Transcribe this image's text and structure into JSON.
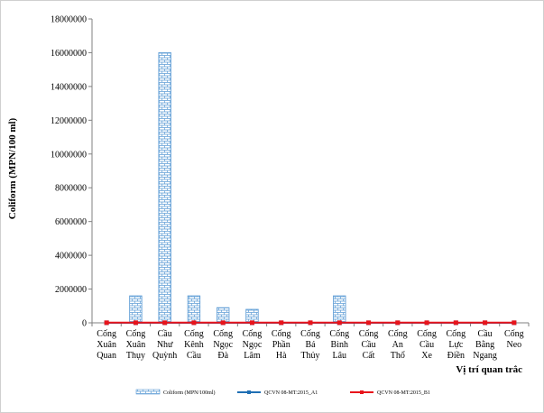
{
  "chart_data": {
    "type": "bar",
    "xlabel": "Vị trí quan trắc",
    "ylabel": "Coliform (MPN/100 ml)",
    "ylim": [
      0,
      18000000
    ],
    "yticks": [
      "0",
      "2000000",
      "4000000",
      "6000000",
      "8000000",
      "10000000",
      "12000000",
      "14000000",
      "16000000",
      "18000000"
    ],
    "categories": [
      [
        "Cống",
        "Xuân",
        "Quan"
      ],
      [
        "Cống",
        "Xuân",
        "Thụy"
      ],
      [
        "Cầu",
        "Như",
        "Quỳnh"
      ],
      [
        "Cống",
        "Kênh",
        "Cầu"
      ],
      [
        "Cống",
        "Ngọc",
        "Đà"
      ],
      [
        "Cống",
        "Ngọc",
        "Lâm"
      ],
      [
        "Cống",
        "Phần",
        "Hà"
      ],
      [
        "Cống",
        "Bá",
        "Thủy"
      ],
      [
        "Cống",
        "Bình",
        "Lâu"
      ],
      [
        "Cống",
        "Cầu",
        "Cất"
      ],
      [
        "Cống",
        "An",
        "Thổ"
      ],
      [
        "Cống",
        "Cầu",
        "Xe"
      ],
      [
        "Cống",
        "Lực",
        "Điền"
      ],
      [
        "Cầu",
        "Bằng",
        "Ngang"
      ],
      [
        "Cống",
        "Neo",
        ""
      ]
    ],
    "series": [
      {
        "name": "Coliform (MPN/100ml)",
        "kind": "bar",
        "color": "#5b9bd5",
        "values": [
          0,
          1600000,
          16000000,
          1600000,
          900000,
          800000,
          0,
          0,
          1600000,
          0,
          0,
          0,
          0,
          0,
          0
        ]
      },
      {
        "name": "QCVN 08-MT:2015_A1",
        "kind": "line",
        "color": "#1f6fb4",
        "values": [
          2500,
          2500,
          2500,
          2500,
          2500,
          2500,
          2500,
          2500,
          2500,
          2500,
          2500,
          2500,
          2500,
          2500,
          2500
        ]
      },
      {
        "name": "QCVN 08-MT:2015_B1",
        "kind": "line",
        "color": "#e8141b",
        "values": [
          7500,
          7500,
          7500,
          7500,
          7500,
          7500,
          7500,
          7500,
          7500,
          7500,
          7500,
          7500,
          7500,
          7500,
          7500
        ]
      }
    ],
    "legend": "bottom",
    "grid": false
  }
}
